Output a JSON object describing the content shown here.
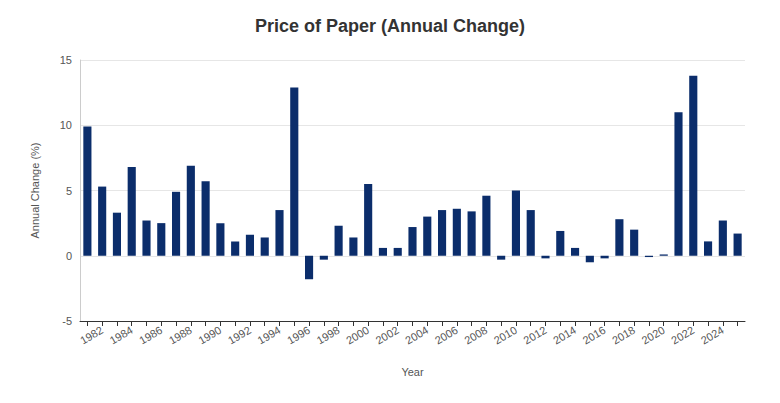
{
  "chart_data": {
    "type": "bar",
    "title": "Price of Paper (Annual Change)",
    "x_label": "Year",
    "y_label": "Annual Change (%)",
    "categories": [
      null,
      "1982",
      null,
      "1984",
      null,
      "1986",
      null,
      "1988",
      null,
      "1990",
      null,
      "1992",
      null,
      "1994",
      null,
      "1996",
      null,
      "1998",
      null,
      "2000",
      null,
      "2002",
      null,
      "2004",
      null,
      "2006",
      null,
      "2008",
      null,
      "2010",
      null,
      "2012",
      null,
      "2014",
      null,
      "2016",
      null,
      "2018",
      null,
      "2020",
      null,
      "2022",
      null,
      "2024",
      null
    ],
    "values": [
      9.9,
      5.3,
      3.3,
      6.8,
      2.7,
      2.5,
      4.9,
      6.9,
      5.7,
      2.5,
      1.1,
      1.6,
      1.4,
      3.5,
      12.9,
      -1.8,
      -0.3,
      2.3,
      1.4,
      5.5,
      0.6,
      0.6,
      2.2,
      3.0,
      3.5,
      3.6,
      3.4,
      4.6,
      -0.3,
      5.0,
      3.5,
      -0.2,
      1.9,
      0.6,
      -0.5,
      -0.2,
      2.8,
      2.0,
      -0.1,
      0.1,
      11.0,
      13.8,
      1.1,
      2.7,
      1.7
    ],
    "color": "#0b2d6b",
    "ylim": [
      -5,
      15
    ],
    "yticks": [
      -5,
      0,
      5,
      10,
      15
    ],
    "grid": true
  }
}
